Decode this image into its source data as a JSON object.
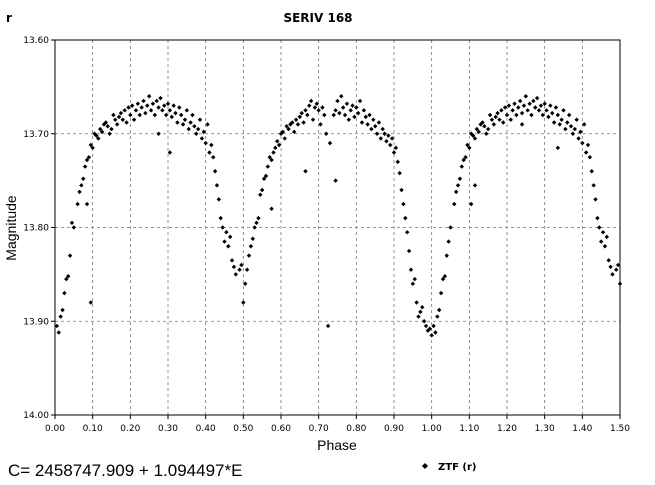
{
  "chart_data": {
    "type": "scatter",
    "title": "SERIV 168",
    "band_label": "r",
    "xlabel": "Phase",
    "ylabel": "Magnitude",
    "xlim": [
      0.0,
      1.5
    ],
    "ylim": [
      13.6,
      14.0
    ],
    "y_inverted": true,
    "grid": true,
    "x_ticks": [
      "0.00",
      "0.10",
      "0.20",
      "0.30",
      "0.40",
      "0.50",
      "0.60",
      "0.70",
      "0.80",
      "0.90",
      "1.00",
      "1.10",
      "1.20",
      "1.30",
      "1.40",
      "1.50"
    ],
    "y_ticks": [
      "13.60",
      "13.70",
      "13.80",
      "13.90",
      "14.00"
    ],
    "ephemeris": "C= 2458747.909 + 1.094497*E",
    "legend": [
      {
        "name": "ZTF (r)",
        "color": "#000000",
        "marker": "diamond"
      }
    ],
    "legend_placement": "bottom-right",
    "series": [
      {
        "name": "ZTF (r)",
        "color": "#000000",
        "points": [
          [
            0.005,
            13.905
          ],
          [
            0.01,
            13.912
          ],
          [
            0.015,
            13.895
          ],
          [
            0.02,
            13.888
          ],
          [
            0.025,
            13.87
          ],
          [
            0.03,
            13.855
          ],
          [
            0.035,
            13.852
          ],
          [
            0.04,
            13.83
          ],
          [
            0.045,
            13.795
          ],
          [
            0.05,
            13.8
          ],
          [
            0.06,
            13.775
          ],
          [
            0.065,
            13.762
          ],
          [
            0.07,
            13.755
          ],
          [
            0.075,
            13.748
          ],
          [
            0.08,
            13.735
          ],
          [
            0.085,
            13.728
          ],
          [
            0.09,
            13.725
          ],
          [
            0.095,
            13.712
          ],
          [
            0.1,
            13.715
          ],
          [
            0.105,
            13.7
          ],
          [
            0.11,
            13.702
          ],
          [
            0.115,
            13.705
          ],
          [
            0.12,
            13.695
          ],
          [
            0.125,
            13.698
          ],
          [
            0.13,
            13.69
          ],
          [
            0.135,
            13.688
          ],
          [
            0.14,
            13.692
          ],
          [
            0.145,
            13.7
          ],
          [
            0.15,
            13.695
          ],
          [
            0.155,
            13.68
          ],
          [
            0.16,
            13.685
          ],
          [
            0.165,
            13.69
          ],
          [
            0.17,
            13.682
          ],
          [
            0.175,
            13.678
          ],
          [
            0.18,
            13.685
          ],
          [
            0.185,
            13.675
          ],
          [
            0.19,
            13.688
          ],
          [
            0.195,
            13.672
          ],
          [
            0.2,
            13.68
          ],
          [
            0.205,
            13.67
          ],
          [
            0.21,
            13.685
          ],
          [
            0.215,
            13.675
          ],
          [
            0.22,
            13.668
          ],
          [
            0.225,
            13.68
          ],
          [
            0.23,
            13.672
          ],
          [
            0.235,
            13.665
          ],
          [
            0.24,
            13.678
          ],
          [
            0.245,
            13.67
          ],
          [
            0.25,
            13.66
          ],
          [
            0.255,
            13.675
          ],
          [
            0.26,
            13.668
          ],
          [
            0.265,
            13.68
          ],
          [
            0.27,
            13.665
          ],
          [
            0.275,
            13.672
          ],
          [
            0.28,
            13.662
          ],
          [
            0.285,
            13.675
          ],
          [
            0.29,
            13.67
          ],
          [
            0.295,
            13.68
          ],
          [
            0.3,
            13.668
          ],
          [
            0.305,
            13.675
          ],
          [
            0.31,
            13.682
          ],
          [
            0.315,
            13.67
          ],
          [
            0.32,
            13.678
          ],
          [
            0.325,
            13.688
          ],
          [
            0.33,
            13.672
          ],
          [
            0.335,
            13.68
          ],
          [
            0.34,
            13.69
          ],
          [
            0.345,
            13.685
          ],
          [
            0.35,
            13.675
          ],
          [
            0.355,
            13.695
          ],
          [
            0.36,
            13.688
          ],
          [
            0.365,
            13.68
          ],
          [
            0.37,
            13.692
          ],
          [
            0.375,
            13.7
          ],
          [
            0.38,
            13.695
          ],
          [
            0.385,
            13.685
          ],
          [
            0.39,
            13.705
          ],
          [
            0.395,
            13.698
          ],
          [
            0.4,
            13.71
          ],
          [
            0.405,
            13.69
          ],
          [
            0.41,
            13.72
          ],
          [
            0.415,
            13.712
          ],
          [
            0.42,
            13.725
          ],
          [
            0.425,
            13.74
          ],
          [
            0.43,
            13.755
          ],
          [
            0.435,
            13.77
          ],
          [
            0.44,
            13.79
          ],
          [
            0.445,
            13.8
          ],
          [
            0.45,
            13.815
          ],
          [
            0.455,
            13.805
          ],
          [
            0.46,
            13.82
          ],
          [
            0.465,
            13.81
          ],
          [
            0.47,
            13.835
          ],
          [
            0.475,
            13.842
          ],
          [
            0.48,
            13.85
          ],
          [
            0.49,
            13.845
          ],
          [
            0.495,
            13.84
          ],
          [
            0.5,
            13.88
          ],
          [
            0.505,
            13.86
          ],
          [
            0.51,
            13.845
          ],
          [
            0.515,
            13.83
          ],
          [
            0.52,
            13.82
          ],
          [
            0.525,
            13.812
          ],
          [
            0.53,
            13.8
          ],
          [
            0.535,
            13.795
          ],
          [
            0.54,
            13.79
          ],
          [
            0.545,
            13.765
          ],
          [
            0.55,
            13.76
          ],
          [
            0.555,
            13.748
          ],
          [
            0.56,
            13.745
          ],
          [
            0.565,
            13.735
          ],
          [
            0.57,
            13.725
          ],
          [
            0.575,
            13.728
          ],
          [
            0.58,
            13.72
          ],
          [
            0.585,
            13.715
          ],
          [
            0.59,
            13.708
          ],
          [
            0.595,
            13.712
          ],
          [
            0.6,
            13.7
          ],
          [
            0.605,
            13.698
          ],
          [
            0.61,
            13.705
          ],
          [
            0.615,
            13.692
          ],
          [
            0.62,
            13.695
          ],
          [
            0.625,
            13.69
          ],
          [
            0.63,
            13.688
          ],
          [
            0.635,
            13.698
          ],
          [
            0.64,
            13.685
          ],
          [
            0.645,
            13.69
          ],
          [
            0.65,
            13.682
          ],
          [
            0.655,
            13.678
          ],
          [
            0.66,
            13.688
          ],
          [
            0.665,
            13.675
          ],
          [
            0.67,
            13.68
          ],
          [
            0.675,
            13.67
          ],
          [
            0.68,
            13.665
          ],
          [
            0.685,
            13.685
          ],
          [
            0.69,
            13.672
          ],
          [
            0.695,
            13.668
          ],
          [
            0.7,
            13.675
          ],
          [
            0.705,
            13.69
          ],
          [
            0.71,
            13.672
          ],
          [
            0.715,
            13.68
          ],
          [
            0.72,
            13.7
          ],
          [
            0.73,
            13.71
          ],
          [
            0.74,
            13.68
          ],
          [
            0.745,
            13.675
          ],
          [
            0.75,
            13.665
          ],
          [
            0.755,
            13.678
          ],
          [
            0.76,
            13.66
          ],
          [
            0.765,
            13.672
          ],
          [
            0.77,
            13.68
          ],
          [
            0.775,
            13.668
          ],
          [
            0.78,
            13.685
          ],
          [
            0.785,
            13.675
          ],
          [
            0.79,
            13.67
          ],
          [
            0.795,
            13.682
          ],
          [
            0.8,
            13.672
          ],
          [
            0.805,
            13.678
          ],
          [
            0.81,
            13.665
          ],
          [
            0.815,
            13.688
          ],
          [
            0.82,
            13.675
          ],
          [
            0.825,
            13.682
          ],
          [
            0.83,
            13.69
          ],
          [
            0.835,
            13.68
          ],
          [
            0.84,
            13.695
          ],
          [
            0.845,
            13.685
          ],
          [
            0.85,
            13.692
          ],
          [
            0.855,
            13.7
          ],
          [
            0.86,
            13.688
          ],
          [
            0.865,
            13.705
          ],
          [
            0.87,
            13.695
          ],
          [
            0.875,
            13.7
          ],
          [
            0.88,
            13.708
          ],
          [
            0.885,
            13.702
          ],
          [
            0.89,
            13.712
          ],
          [
            0.895,
            13.705
          ],
          [
            0.9,
            13.72
          ],
          [
            0.905,
            13.715
          ],
          [
            0.91,
            13.73
          ],
          [
            0.915,
            13.742
          ],
          [
            0.92,
            13.76
          ],
          [
            0.925,
            13.775
          ],
          [
            0.93,
            13.79
          ],
          [
            0.935,
            13.805
          ],
          [
            0.94,
            13.825
          ],
          [
            0.945,
            13.845
          ],
          [
            0.95,
            13.86
          ],
          [
            0.955,
            13.855
          ],
          [
            0.96,
            13.88
          ],
          [
            0.965,
            13.895
          ],
          [
            0.97,
            13.89
          ],
          [
            0.975,
            13.885
          ],
          [
            0.98,
            13.9
          ],
          [
            0.985,
            13.905
          ],
          [
            0.99,
            13.91
          ],
          [
            0.995,
            13.908
          ],
          [
            1.0,
            13.915
          ],
          [
            0.745,
            13.75
          ],
          [
            0.665,
            13.74
          ],
          [
            0.575,
            13.78
          ],
          [
            0.725,
            13.905
          ],
          [
            1.005,
            13.905
          ],
          [
            1.01,
            13.912
          ],
          [
            1.015,
            13.895
          ],
          [
            1.02,
            13.888
          ],
          [
            1.025,
            13.87
          ],
          [
            1.03,
            13.855
          ],
          [
            1.035,
            13.852
          ],
          [
            1.04,
            13.83
          ],
          [
            1.045,
            13.815
          ],
          [
            1.05,
            13.8
          ],
          [
            1.06,
            13.775
          ],
          [
            1.065,
            13.762
          ],
          [
            1.07,
            13.755
          ],
          [
            1.075,
            13.748
          ],
          [
            1.08,
            13.735
          ],
          [
            1.085,
            13.728
          ],
          [
            1.09,
            13.725
          ],
          [
            1.095,
            13.712
          ],
          [
            1.1,
            13.715
          ],
          [
            1.105,
            13.7
          ],
          [
            1.11,
            13.702
          ],
          [
            1.115,
            13.705
          ],
          [
            1.12,
            13.695
          ],
          [
            1.125,
            13.698
          ],
          [
            1.13,
            13.69
          ],
          [
            1.135,
            13.688
          ],
          [
            1.14,
            13.692
          ],
          [
            1.145,
            13.7
          ],
          [
            1.15,
            13.695
          ],
          [
            1.155,
            13.68
          ],
          [
            1.16,
            13.685
          ],
          [
            1.165,
            13.69
          ],
          [
            1.17,
            13.682
          ],
          [
            1.175,
            13.678
          ],
          [
            1.18,
            13.685
          ],
          [
            1.185,
            13.675
          ],
          [
            1.19,
            13.688
          ],
          [
            1.195,
            13.672
          ],
          [
            1.2,
            13.68
          ],
          [
            1.205,
            13.67
          ],
          [
            1.21,
            13.685
          ],
          [
            1.215,
            13.675
          ],
          [
            1.22,
            13.668
          ],
          [
            1.225,
            13.68
          ],
          [
            1.23,
            13.672
          ],
          [
            1.235,
            13.665
          ],
          [
            1.24,
            13.678
          ],
          [
            1.245,
            13.67
          ],
          [
            1.25,
            13.66
          ],
          [
            1.255,
            13.675
          ],
          [
            1.26,
            13.668
          ],
          [
            1.265,
            13.68
          ],
          [
            1.27,
            13.665
          ],
          [
            1.275,
            13.672
          ],
          [
            1.28,
            13.662
          ],
          [
            1.285,
            13.675
          ],
          [
            1.29,
            13.67
          ],
          [
            1.295,
            13.68
          ],
          [
            1.3,
            13.668
          ],
          [
            1.305,
            13.675
          ],
          [
            1.31,
            13.682
          ],
          [
            1.315,
            13.67
          ],
          [
            1.32,
            13.678
          ],
          [
            1.325,
            13.688
          ],
          [
            1.33,
            13.672
          ],
          [
            1.335,
            13.68
          ],
          [
            1.34,
            13.69
          ],
          [
            1.345,
            13.685
          ],
          [
            1.35,
            13.675
          ],
          [
            1.355,
            13.695
          ],
          [
            1.36,
            13.688
          ],
          [
            1.365,
            13.68
          ],
          [
            1.37,
            13.692
          ],
          [
            1.375,
            13.7
          ],
          [
            1.38,
            13.695
          ],
          [
            1.385,
            13.685
          ],
          [
            1.39,
            13.705
          ],
          [
            1.395,
            13.698
          ],
          [
            1.4,
            13.71
          ],
          [
            1.405,
            13.69
          ],
          [
            1.41,
            13.72
          ],
          [
            1.415,
            13.712
          ],
          [
            1.42,
            13.725
          ],
          [
            1.425,
            13.74
          ],
          [
            1.43,
            13.755
          ],
          [
            1.435,
            13.77
          ],
          [
            1.44,
            13.79
          ],
          [
            1.445,
            13.8
          ],
          [
            1.45,
            13.815
          ],
          [
            1.455,
            13.805
          ],
          [
            1.46,
            13.82
          ],
          [
            1.465,
            13.81
          ],
          [
            1.47,
            13.835
          ],
          [
            1.475,
            13.842
          ],
          [
            1.48,
            13.85
          ],
          [
            1.49,
            13.845
          ],
          [
            1.495,
            13.84
          ],
          [
            1.5,
            13.86
          ],
          [
            0.095,
            13.88
          ],
          [
            0.085,
            13.775
          ],
          [
            0.275,
            13.7
          ],
          [
            0.305,
            13.72
          ],
          [
            1.115,
            13.755
          ],
          [
            1.105,
            13.775
          ],
          [
            1.24,
            13.69
          ],
          [
            1.335,
            13.715
          ]
        ]
      }
    ]
  }
}
